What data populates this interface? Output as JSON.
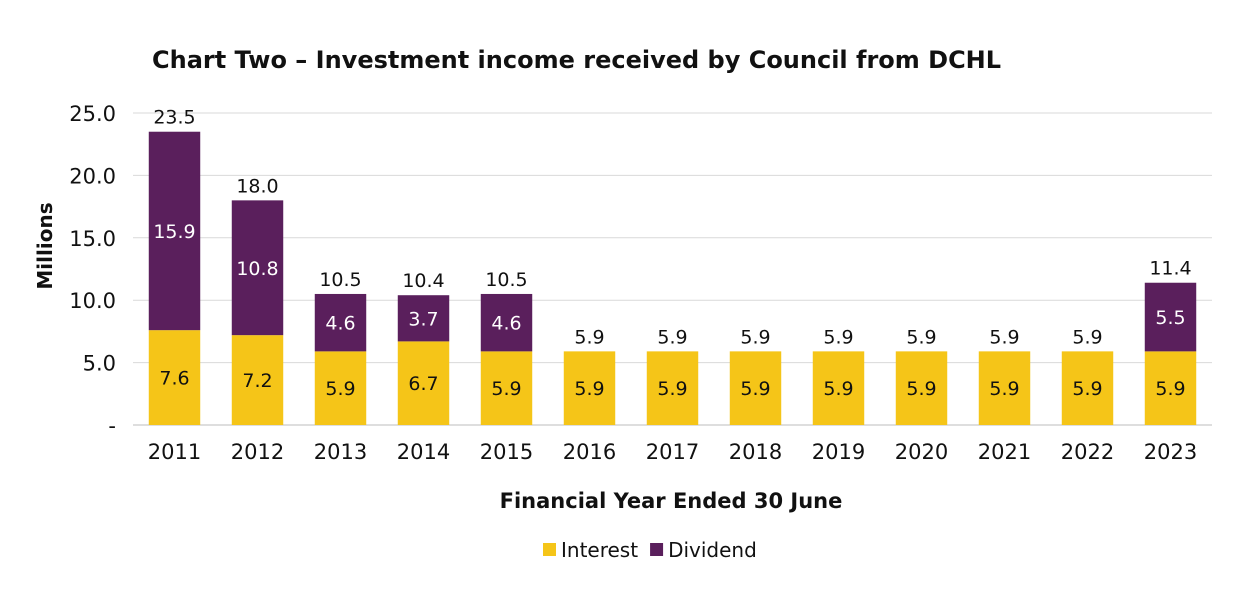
{
  "chart_data": {
    "type": "bar",
    "stacked": true,
    "title": "Chart Two – Investment income received by Council from DCHL",
    "xlabel": "Financial Year Ended 30 June",
    "ylabel": "Millions",
    "ylim": [
      0,
      25
    ],
    "yticks": [
      {
        "value": 0,
        "label": "-"
      },
      {
        "value": 5,
        "label": "5.0"
      },
      {
        "value": 10,
        "label": "10.0"
      },
      {
        "value": 15,
        "label": "15.0"
      },
      {
        "value": 20,
        "label": "20.0"
      },
      {
        "value": 25,
        "label": "25.0"
      }
    ],
    "grid": true,
    "legend_position": "bottom",
    "categories": [
      "2011",
      "2012",
      "2013",
      "2014",
      "2015",
      "2016",
      "2017",
      "2018",
      "2019",
      "2020",
      "2021",
      "2022",
      "2023"
    ],
    "series": [
      {
        "name": "Interest",
        "color": "#F5C518",
        "values": [
          7.6,
          7.2,
          5.9,
          6.7,
          5.9,
          5.9,
          5.9,
          5.9,
          5.9,
          5.9,
          5.9,
          5.9,
          5.9
        ]
      },
      {
        "name": "Dividend",
        "color": "#5A1F5C",
        "values": [
          15.9,
          10.8,
          4.6,
          3.7,
          4.6,
          null,
          null,
          null,
          null,
          null,
          null,
          null,
          5.5
        ]
      }
    ],
    "segment_labels": {
      "Interest": [
        "7.6",
        "7.2",
        "5.9",
        "6.7",
        "5.9",
        "5.9",
        "5.9",
        "5.9",
        "5.9",
        "5.9",
        "5.9",
        "5.9",
        "5.9"
      ],
      "Dividend": [
        "15.9",
        "10.8",
        "4.6",
        "3.7",
        "4.6",
        null,
        null,
        null,
        null,
        null,
        null,
        null,
        "5.5"
      ]
    },
    "totals": [
      "23.5",
      "18.0",
      "10.5",
      "10.4",
      "10.5",
      "5.9",
      "5.9",
      "5.9",
      "5.9",
      "5.9",
      "5.9",
      "5.9",
      "11.4"
    ]
  }
}
